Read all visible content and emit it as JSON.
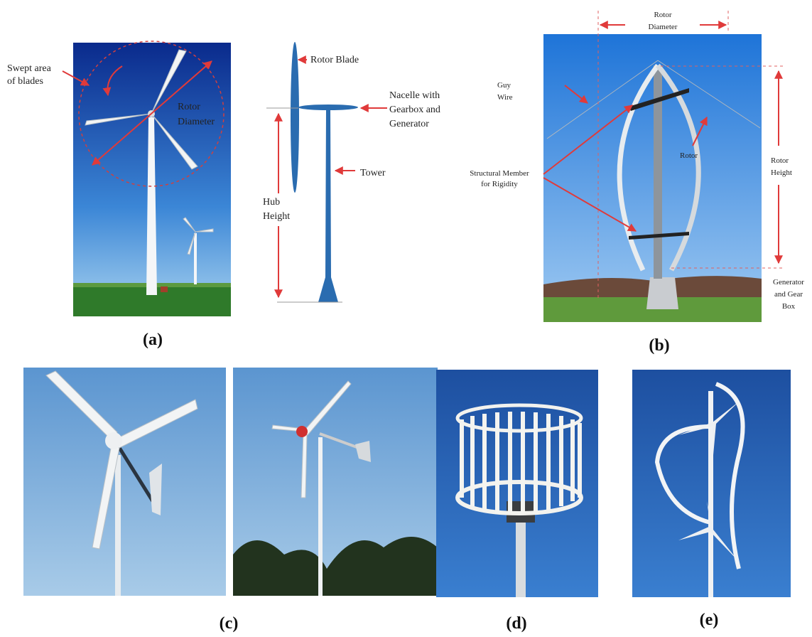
{
  "panel_a": {
    "label": "(a)",
    "swept_area": [
      "Swept area",
      "of blades"
    ],
    "rotor_diameter": [
      "Rotor",
      "Diameter"
    ],
    "rotor_blade": "Rotor Blade",
    "nacelle": [
      "Nacelle with",
      "Gearbox and",
      "Generator"
    ],
    "tower": "Tower",
    "hub_height": [
      "Hub",
      "Height"
    ]
  },
  "panel_b": {
    "label": "(b)",
    "rotor_diameter": [
      "Rotor",
      "Diameter"
    ],
    "guy_wire": [
      "Guy",
      "Wire"
    ],
    "rotor": "Rotor",
    "rotor_height": [
      "Rotor",
      "Height"
    ],
    "structural_member": [
      "Structural Member",
      "for Rigidity"
    ],
    "generator": [
      "Generator",
      "and Gear",
      "Box"
    ]
  },
  "panel_c": {
    "label": "(c)"
  },
  "panel_d": {
    "label": "(d)"
  },
  "panel_e": {
    "label": "(e)"
  }
}
